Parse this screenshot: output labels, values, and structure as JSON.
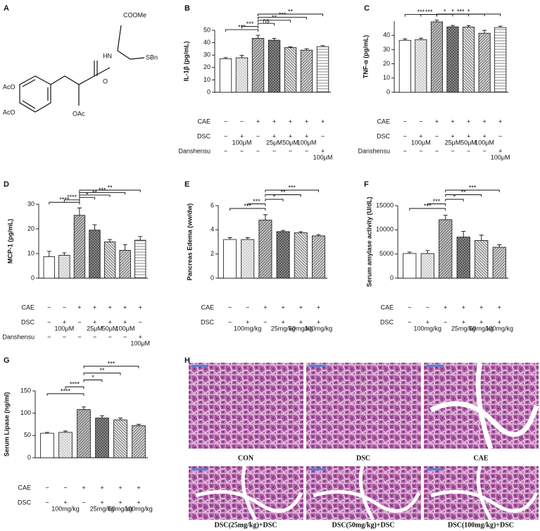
{
  "structure": {
    "panel": "A",
    "labels": [
      "COOMe",
      "HN",
      "SBn",
      "O",
      "AcO",
      "AcO",
      "OAc"
    ]
  },
  "histology": {
    "panel": "H",
    "images": [
      {
        "caption": "CON"
      },
      {
        "caption": "DSC"
      },
      {
        "caption": "CAE"
      },
      {
        "caption": "DSC(25mg/kg)+DSC"
      },
      {
        "caption": "DSC(50mg/kg)+DSC"
      },
      {
        "caption": "DSC(100mg/kg)+DSC"
      }
    ]
  },
  "chart_data": [
    {
      "type": "bar",
      "panel": "B",
      "ylabel": "IL-1β (pg/mL)",
      "values": [
        27,
        27.8,
        43.5,
        42,
        36,
        34,
        36.8
      ],
      "errors": [
        1,
        2,
        2.5,
        1.5,
        0.7,
        1.2,
        0.8
      ],
      "ylim": [
        0,
        50
      ],
      "yticks": [
        0,
        10,
        20,
        30,
        40,
        50
      ],
      "bar_colors": [
        "#ffffff",
        "#e6e6e6",
        "#bdbdbd",
        "#8f8f8f",
        "#e0e0e0",
        "#cfcfcf",
        "#ffffff"
      ],
      "conditions": [
        {
          "name": "CAE",
          "signs": [
            "−",
            "−",
            "+",
            "+",
            "+",
            "+",
            "+"
          ]
        },
        {
          "name": "DSC",
          "signs": [
            "−",
            "+",
            "−",
            "+",
            "+",
            "+",
            "−"
          ],
          "doses": [
            null,
            "100μM",
            null,
            "25μM",
            "50μM",
            "100μM",
            null
          ]
        },
        {
          "name": "Danshensu",
          "signs": [
            "−",
            "−",
            "−",
            "−",
            "−",
            "−",
            "+"
          ],
          "doses": [
            null,
            null,
            null,
            null,
            null,
            null,
            "100μM"
          ]
        }
      ],
      "significance": [
        {
          "from": 0,
          "to": 2,
          "label": "***"
        },
        {
          "from": 1,
          "to": 2,
          "label": "***"
        },
        {
          "from": 2,
          "to": 3,
          "label": "ns"
        },
        {
          "from": 2,
          "to": 4,
          "label": "**"
        },
        {
          "from": 2,
          "to": 5,
          "label": "***"
        },
        {
          "from": 2,
          "to": 6,
          "label": "**"
        }
      ]
    },
    {
      "type": "bar",
      "panel": "C",
      "ylabel": "TNF-α (pg/mL)",
      "values": [
        36.5,
        37,
        49.5,
        46,
        45.8,
        41.5,
        45.5
      ],
      "errors": [
        1,
        1,
        1.2,
        1,
        1,
        2,
        1
      ],
      "ylim": [
        0,
        50
      ],
      "yticks": [
        0,
        10,
        20,
        30,
        40
      ],
      "bar_colors": [
        "#ffffff",
        "#e6e6e6",
        "#bdbdbd",
        "#8f8f8f",
        "#e0e0e0",
        "#cfcfcf",
        "#ffffff"
      ],
      "conditions": [
        {
          "name": "CAE",
          "signs": [
            "−",
            "−",
            "+",
            "+",
            "+",
            "+",
            "+"
          ]
        },
        {
          "name": "DSC",
          "signs": [
            "−",
            "+",
            "−",
            "+",
            "+",
            "+",
            "−"
          ],
          "doses": [
            null,
            "100μM",
            null,
            "25μM",
            "50μM",
            "100μM",
            null
          ]
        },
        {
          "name": "Danshensu",
          "signs": [
            "−",
            "−",
            "−",
            "−",
            "−",
            "−",
            "+"
          ],
          "doses": [
            null,
            null,
            null,
            null,
            null,
            null,
            "100μM"
          ]
        }
      ],
      "significance": [
        {
          "from": 0,
          "to": 2,
          "label": "***"
        },
        {
          "from": 1,
          "to": 2,
          "label": "***"
        },
        {
          "from": 2,
          "to": 3,
          "label": "*"
        },
        {
          "from": 2,
          "to": 4,
          "label": "*"
        },
        {
          "from": 2,
          "to": 5,
          "label": "***"
        },
        {
          "from": 2,
          "to": 6,
          "label": "*"
        }
      ]
    },
    {
      "type": "bar",
      "panel": "D",
      "ylabel": "MCP-1 (pg/mL)",
      "values": [
        8.7,
        9.3,
        25.5,
        19.5,
        14.7,
        11.3,
        15.4
      ],
      "errors": [
        2.2,
        1,
        3,
        2.2,
        1,
        2.3,
        1.5
      ],
      "ylim": [
        0,
        30
      ],
      "yticks": [
        0,
        10,
        20,
        30
      ],
      "bar_colors": [
        "#ffffff",
        "#e6e6e6",
        "#bdbdbd",
        "#8f8f8f",
        "#e0e0e0",
        "#cfcfcf",
        "#ffffff"
      ],
      "conditions": [
        {
          "name": "CAE",
          "signs": [
            "−",
            "−",
            "+",
            "+",
            "+",
            "+",
            "+"
          ]
        },
        {
          "name": "DSC",
          "signs": [
            "−",
            "+",
            "−",
            "+",
            "+",
            "+",
            "−"
          ],
          "doses": [
            null,
            "100μM",
            null,
            "25μM",
            "50μM",
            "100μM",
            null
          ]
        },
        {
          "name": "Danshensu",
          "signs": [
            "−",
            "−",
            "−",
            "−",
            "−",
            "−",
            "+"
          ],
          "doses": [
            null,
            null,
            null,
            null,
            null,
            null,
            "100μM"
          ]
        }
      ],
      "significance": [
        {
          "from": 0,
          "to": 2,
          "label": "****"
        },
        {
          "from": 1,
          "to": 2,
          "label": "****"
        },
        {
          "from": 2,
          "to": 3,
          "label": "*"
        },
        {
          "from": 2,
          "to": 4,
          "label": "**"
        },
        {
          "from": 2,
          "to": 5,
          "label": "***"
        },
        {
          "from": 2,
          "to": 6,
          "label": "**"
        }
      ]
    },
    {
      "type": "bar",
      "panel": "E",
      "ylabel": "Pancreas Edema (ww/dw)",
      "values": [
        3.2,
        3.2,
        4.8,
        3.85,
        3.75,
        3.5
      ],
      "errors": [
        0.15,
        0.15,
        0.45,
        0.1,
        0.1,
        0.1
      ],
      "ylim": [
        0,
        6
      ],
      "yticks": [
        0,
        2,
        4,
        6
      ],
      "bar_colors": [
        "#ffffff",
        "#e6e6e6",
        "#bdbdbd",
        "#8f8f8f",
        "#e0e0e0",
        "#cfcfcf"
      ],
      "conditions": [
        {
          "name": "CAE",
          "signs": [
            "−",
            "−",
            "+",
            "+",
            "+",
            "+"
          ]
        },
        {
          "name": "DSC",
          "signs": [
            "−",
            "+",
            "−",
            "+",
            "+",
            "+"
          ],
          "doses": [
            null,
            "100mg/kg",
            null,
            "25mg/kg",
            "50mg/kg",
            "100mg/kg"
          ]
        }
      ],
      "significance": [
        {
          "from": 0,
          "to": 2,
          "label": "***"
        },
        {
          "from": 1,
          "to": 2,
          "label": "***"
        },
        {
          "from": 2,
          "to": 3,
          "label": "*"
        },
        {
          "from": 2,
          "to": 4,
          "label": "**"
        },
        {
          "from": 2,
          "to": 5,
          "label": "***"
        }
      ]
    },
    {
      "type": "bar",
      "panel": "F",
      "ylabel": "Serum amylase activity (U/dL)",
      "values": [
        5100,
        5100,
        12100,
        8500,
        7800,
        6400
      ],
      "errors": [
        300,
        600,
        900,
        1200,
        1100,
        500
      ],
      "ylim": [
        0,
        15000
      ],
      "yticks": [
        0,
        5000,
        10000,
        15000
      ],
      "bar_colors": [
        "#ffffff",
        "#e6e6e6",
        "#bdbdbd",
        "#8f8f8f",
        "#e0e0e0",
        "#cfcfcf"
      ],
      "conditions": [
        {
          "name": "CAE",
          "signs": [
            "−",
            "−",
            "+",
            "+",
            "+",
            "+"
          ]
        },
        {
          "name": "DSC",
          "signs": [
            "−",
            "+",
            "−",
            "+",
            "+",
            "+"
          ],
          "doses": [
            null,
            "100mg/kg",
            null,
            "25mg/kg",
            "50mg/kg",
            "100mg/kg"
          ]
        }
      ],
      "significance": [
        {
          "from": 0,
          "to": 2,
          "label": "***"
        },
        {
          "from": 1,
          "to": 2,
          "label": "***"
        },
        {
          "from": 2,
          "to": 3,
          "label": "*"
        },
        {
          "from": 2,
          "to": 4,
          "label": "**"
        },
        {
          "from": 2,
          "to": 5,
          "label": "***"
        }
      ]
    },
    {
      "type": "bar",
      "panel": "G",
      "ylabel": "Serum Lipase (ng/ml)",
      "values": [
        55,
        57,
        108,
        89,
        85,
        72
      ],
      "errors": [
        2,
        3,
        6,
        5,
        4,
        3
      ],
      "ylim": [
        0,
        150
      ],
      "yticks": [
        0,
        50,
        100,
        150
      ],
      "bar_colors": [
        "#ffffff",
        "#e6e6e6",
        "#bdbdbd",
        "#8f8f8f",
        "#e0e0e0",
        "#cfcfcf"
      ],
      "conditions": [
        {
          "name": "CAE",
          "signs": [
            "−",
            "−",
            "+",
            "+",
            "+",
            "+"
          ]
        },
        {
          "name": "DSC",
          "signs": [
            "−",
            "+",
            "−",
            "+",
            "+",
            "+"
          ],
          "doses": [
            null,
            "100mg/kg",
            null,
            "25mg/kg",
            "50mg/kg",
            "100mg/kg"
          ]
        }
      ],
      "significance": [
        {
          "from": 0,
          "to": 2,
          "label": "****"
        },
        {
          "from": 1,
          "to": 2,
          "label": "****"
        },
        {
          "from": 2,
          "to": 3,
          "label": "*"
        },
        {
          "from": 2,
          "to": 4,
          "label": "**"
        },
        {
          "from": 2,
          "to": 5,
          "label": "***"
        }
      ]
    }
  ]
}
